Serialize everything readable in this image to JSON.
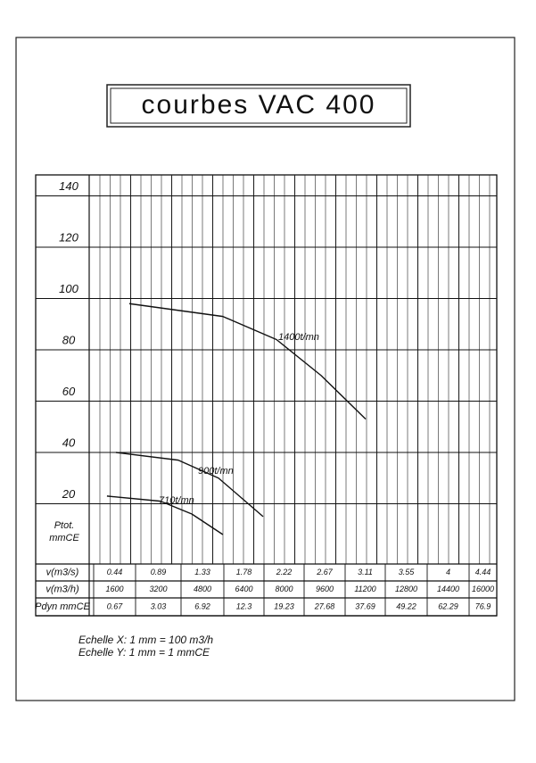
{
  "title": "courbes VAC 400",
  "chart_data": {
    "type": "line",
    "y_label_lines": [
      "Ptot.",
      "mmCE"
    ],
    "xlim": [
      0,
      16000
    ],
    "ylim": [
      0,
      140
    ],
    "yticks": [
      20,
      40,
      60,
      80,
      100,
      120,
      140
    ],
    "grid": true,
    "series": [
      {
        "name": "1400t/mn",
        "color": "#111111",
        "x": [
          2120,
          5770,
          7860,
          9600,
          11340
        ],
        "values": [
          98,
          93,
          84,
          70,
          53
        ]
      },
      {
        "name": "900t/mn",
        "color": "#111111",
        "x": [
          1600,
          4030,
          5600,
          7340
        ],
        "values": [
          40,
          37,
          30,
          15
        ]
      },
      {
        "name": "710t/mn",
        "color": "#111111",
        "x": [
          1250,
          3340,
          4560,
          5770
        ],
        "values": [
          23,
          21,
          16,
          8
        ]
      }
    ]
  },
  "table": {
    "row_labels": [
      "v(m3/s)",
      "v(m3/h)",
      "Pdyn mmCE"
    ],
    "rows": [
      [
        0.44,
        0.89,
        1.33,
        1.78,
        2.22,
        2.67,
        3.11,
        3.55,
        4,
        4.44
      ],
      [
        1600,
        3200,
        4800,
        6400,
        8000,
        9600,
        11200,
        12800,
        14400,
        16000
      ],
      [
        0.67,
        3.03,
        6.92,
        12.3,
        19.23,
        27.68,
        37.69,
        49.22,
        62.29,
        76.9
      ]
    ]
  },
  "notes": [
    "Echelle X: 1 mm = 100 m3/h",
    "Echelle Y: 1 mm = 1 mmCE"
  ]
}
